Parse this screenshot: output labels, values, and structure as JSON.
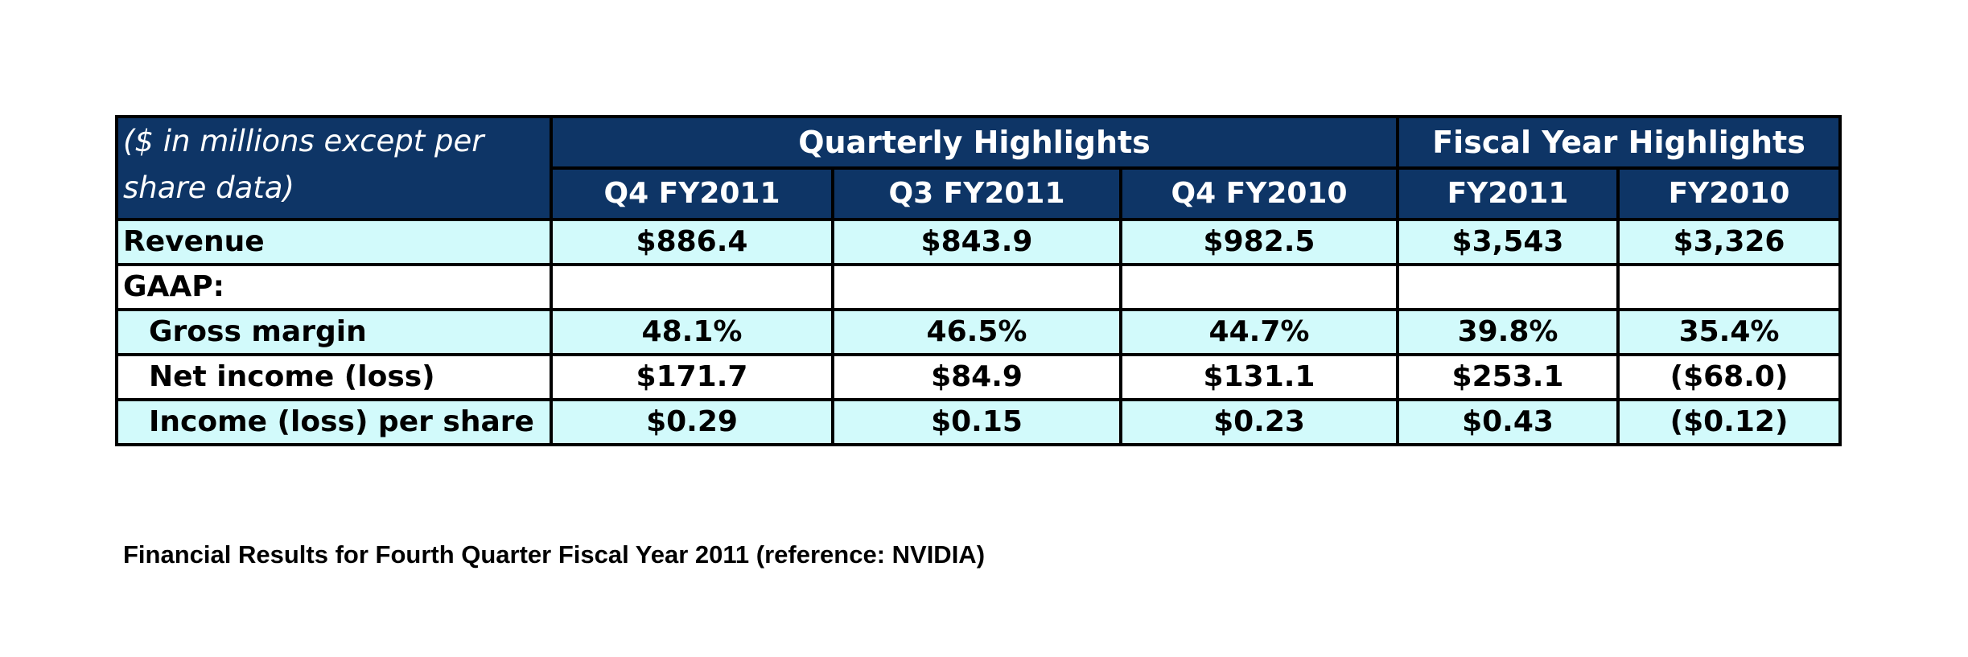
{
  "table": {
    "units_note": "($ in millions except per share data)",
    "group_headers": {
      "quarterly": "Quarterly Highlights",
      "fiscal_year": "Fiscal Year Highlights"
    },
    "columns": [
      "Q4 FY2011",
      "Q3 FY2011",
      "Q4 FY2010",
      "FY2011",
      "FY2010"
    ],
    "rows": [
      {
        "label": "Revenue",
        "values": [
          "$886.4",
          "$843.9",
          "$982.5",
          "$3,543",
          "$3,326"
        ]
      },
      {
        "label": "GAAP:",
        "values": [
          "",
          "",
          "",
          "",
          ""
        ]
      },
      {
        "label": "Gross margin",
        "values": [
          "48.1%",
          "46.5%",
          "44.7%",
          "39.8%",
          "35.4%"
        ]
      },
      {
        "label": "Net income (loss)",
        "values": [
          "$171.7",
          "$84.9",
          "$131.1",
          "$253.1",
          "($68.0)"
        ]
      },
      {
        "label": "Income (loss) per share",
        "values": [
          "$0.29",
          "$0.15",
          "$0.23",
          "$0.43",
          "($0.12)"
        ]
      }
    ]
  },
  "caption": "Financial Results for Fourth Quarter Fiscal Year 2011 (reference: NVIDIA)",
  "colors": {
    "header_bg": "#0e3566",
    "header_text": "#ffffff",
    "row_tint": "#d2fafb",
    "border": "#000000"
  }
}
